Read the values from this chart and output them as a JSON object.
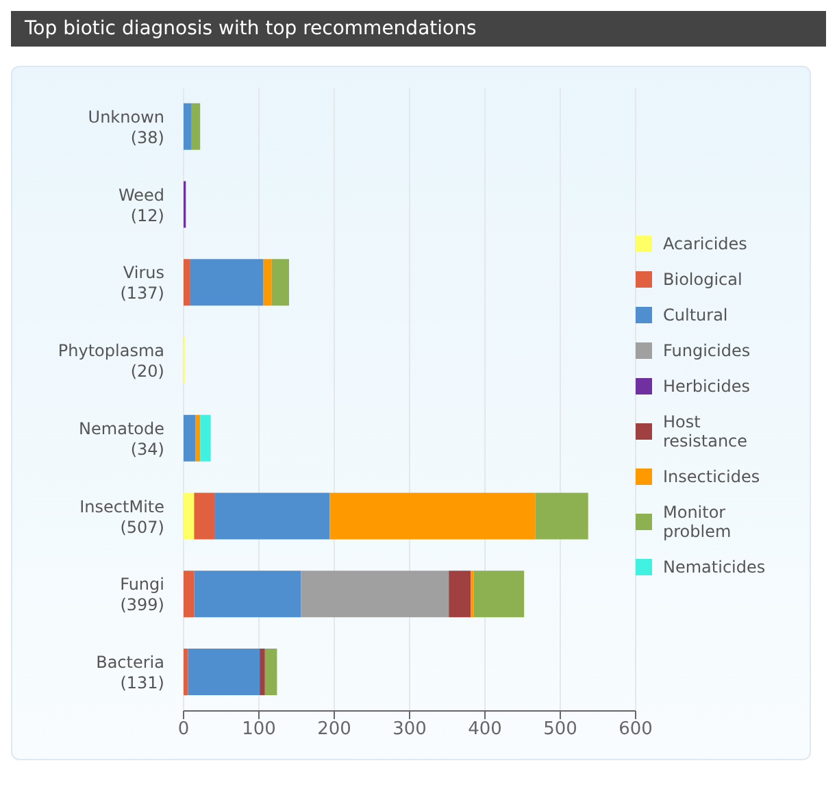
{
  "chart_data": {
    "type": "bar",
    "orientation": "horizontal",
    "stacked": true,
    "title": "Top biotic diagnosis with top recommendations",
    "categories": [
      "Unknown\n(38)",
      "Weed\n(12)",
      "Virus\n(137)",
      "Phytoplasma\n(20)",
      "Nematode\n(34)",
      "InsectMite\n(507)",
      "Fungi\n(399)",
      "Bacteria\n(131)"
    ],
    "series": [
      {
        "name": "Acaricides",
        "color": "#ffff66",
        "values": [
          null,
          null,
          null,
          2,
          null,
          14,
          null,
          null
        ]
      },
      {
        "name": "Biological",
        "color": "#e06040",
        "values": [
          null,
          null,
          9,
          null,
          null,
          27,
          14,
          6
        ]
      },
      {
        "name": "Cultural",
        "color": "#4f8fcf",
        "values": [
          10,
          null,
          97,
          null,
          16,
          153,
          142,
          95
        ]
      },
      {
        "name": "Fungicides",
        "color": "#a0a0a0",
        "values": [
          null,
          null,
          null,
          null,
          null,
          null,
          196,
          null
        ]
      },
      {
        "name": "Herbicides",
        "color": "#7030a0",
        "values": [
          null,
          3,
          null,
          null,
          null,
          null,
          null,
          null
        ]
      },
      {
        "name": "Host resistance",
        "color": "#a04040",
        "values": [
          null,
          null,
          null,
          null,
          null,
          null,
          29,
          7
        ]
      },
      {
        "name": "Insecticides",
        "color": "#ff9900",
        "values": [
          null,
          null,
          11,
          null,
          6,
          273,
          4,
          null
        ]
      },
      {
        "name": "Monitor problem",
        "color": "#8db050",
        "values": [
          12,
          null,
          23,
          null,
          null,
          70,
          67,
          16
        ]
      },
      {
        "name": "Nematicides",
        "color": "#40f0e0",
        "values": [
          null,
          null,
          null,
          null,
          14,
          null,
          null,
          null
        ]
      }
    ],
    "xlim": [
      0,
      600
    ],
    "xticks": [
      0,
      100,
      200,
      300,
      400,
      500,
      600
    ],
    "grid": "x",
    "legend": "right"
  }
}
